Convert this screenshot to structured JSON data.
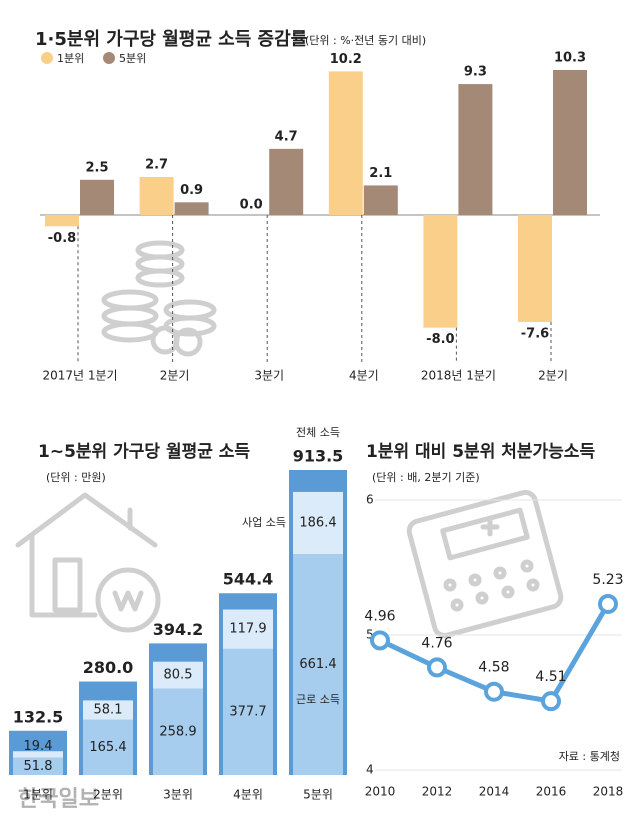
{
  "chart_data": [
    {
      "type": "bar",
      "title": "1·5분위 가구당 월평균 소득 증감률",
      "subtitle": "(단위 : %·전년 동기 대비)",
      "categories": [
        "2017년 1분기",
        "2분기",
        "3분기",
        "4분기",
        "2018년 1분기",
        "2분기"
      ],
      "series": [
        {
          "name": "1분위",
          "color": "#f9cf8a",
          "values": [
            -0.8,
            2.7,
            0,
            10.2,
            -8,
            -7.6
          ],
          "value_labels": [
            "-0.8",
            "2.7",
            "0.0",
            "10.2",
            "-8.0",
            "-7.6"
          ]
        },
        {
          "name": "5분위",
          "color": "#a48a76",
          "values": [
            2.5,
            0.9,
            4.7,
            2.1,
            9.3,
            10.3
          ],
          "value_labels": [
            "2.5",
            "0.9",
            "4.7",
            "2.1",
            "9.3",
            "10.3"
          ]
        }
      ]
    },
    {
      "type": "stacked_bar",
      "title": "1~5분위 가구당 월평균 소득",
      "subtitle": "(단위 : 만원)",
      "categories": [
        "1분위",
        "2분위",
        "3분위",
        "4분위",
        "5분위"
      ],
      "series": [
        {
          "name": "근로 소득",
          "color": "#a7cdee",
          "values": [
            51.8,
            165.4,
            258.9,
            377.7,
            661.4
          ]
        },
        {
          "name": "사업 소득",
          "color": "#dbebf9",
          "values": [
            19.4,
            58.1,
            80.5,
            117.9,
            186.4
          ]
        },
        {
          "name": "전체 소득",
          "color": "#5b9bd5",
          "values": [
            132.5,
            280,
            394.2,
            544.4,
            913.5
          ],
          "value_labels": [
            "132.5",
            "280.0",
            "394.2",
            "544.4",
            "913.5"
          ]
        }
      ],
      "watermark": "한국일보"
    },
    {
      "type": "line",
      "title": "1분위 대비 5분위 처분가능소득",
      "subtitle": "(단위 : 배, 2분기 기준)",
      "x": [
        2010,
        2012,
        2014,
        2016,
        2018
      ],
      "values": [
        4.96,
        4.76,
        4.58,
        4.51,
        5.23
      ],
      "color": "#5ba3dc",
      "xlim": [
        2010,
        2018
      ],
      "xticks": [
        2010,
        2012,
        2014,
        2016,
        2018
      ],
      "ylim": [
        4,
        6
      ],
      "yticks": [
        4,
        5,
        6
      ],
      "source": "자료 : 통계청"
    }
  ]
}
